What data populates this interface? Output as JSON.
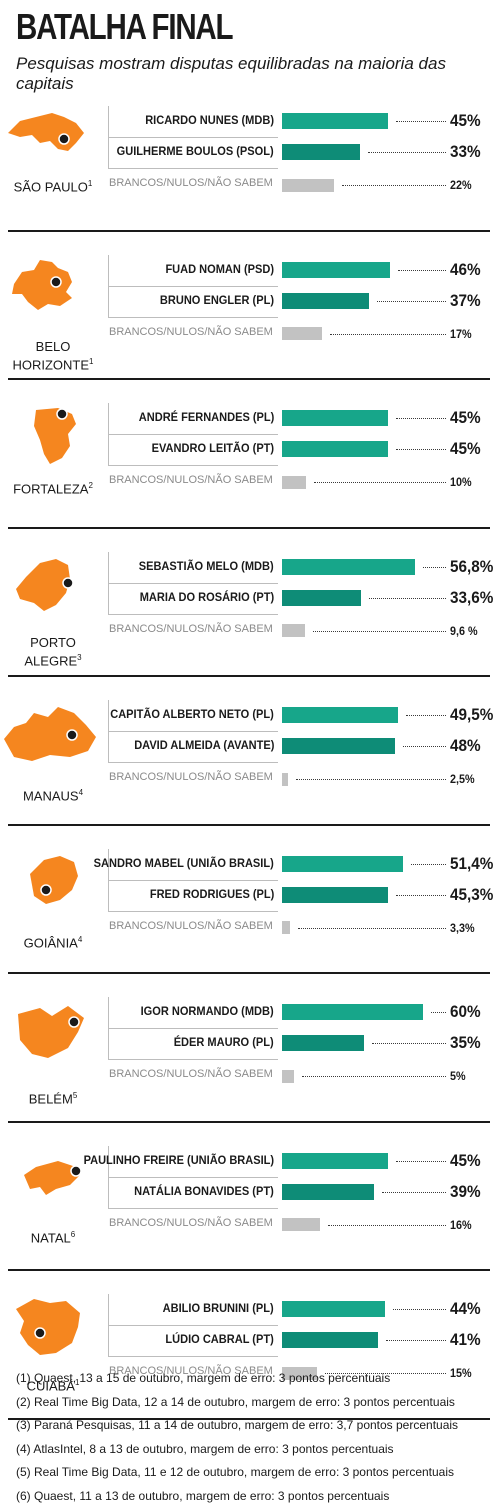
{
  "title": "BATALHA FINAL",
  "subtitle": "Pesquisas mostram disputas equilibradas na maioria das capitais",
  "colors": {
    "leader": "#17a68a",
    "runner": "#0e8c77",
    "blank": "#c2c2c2",
    "map": "#f5861f"
  },
  "chart_data": {
    "type": "bar",
    "orientation": "horizontal",
    "unit": "%",
    "cities": [
      {
        "name": "SÃO PAULO",
        "note": "1",
        "map_icon": "sao-paulo-state-map",
        "rows": [
          {
            "label": "RICARDO NUNES (MDB)",
            "value": 45,
            "display": "45%",
            "kind": "leader"
          },
          {
            "label": "GUILHERME BOULOS (PSOL)",
            "value": 33,
            "display": "33%",
            "kind": "runner"
          },
          {
            "label": "BRANCOS/NULOS/NÃO SABEM",
            "value": 22,
            "display": "22%",
            "kind": "blank"
          }
        ]
      },
      {
        "name": "BELO HORIZONTE",
        "note": "1",
        "map_icon": "minas-gerais-state-map",
        "rows": [
          {
            "label": "FUAD NOMAN (PSD)",
            "value": 46,
            "display": "46%",
            "kind": "leader"
          },
          {
            "label": "BRUNO ENGLER (PL)",
            "value": 37,
            "display": "37%",
            "kind": "runner"
          },
          {
            "label": "BRANCOS/NULOS/NÃO SABEM",
            "value": 17,
            "display": "17%",
            "kind": "blank"
          }
        ]
      },
      {
        "name": "FORTALEZA",
        "note": "2",
        "map_icon": "ceara-state-map",
        "rows": [
          {
            "label": "ANDRÉ FERNANDES (PL)",
            "value": 45,
            "display": "45%",
            "kind": "leader"
          },
          {
            "label": "EVANDRO LEITÃO (PT)",
            "value": 45,
            "display": "45%",
            "kind": "leader"
          },
          {
            "label": "BRANCOS/NULOS/NÃO SABEM",
            "value": 10,
            "display": "10%",
            "kind": "blank"
          }
        ]
      },
      {
        "name": "PORTO ALEGRE",
        "note": "3",
        "map_icon": "rio-grande-do-sul-state-map",
        "rows": [
          {
            "label": "SEBASTIÃO MELO (MDB)",
            "value": 56.8,
            "display": "56,8%",
            "kind": "leader"
          },
          {
            "label": "MARIA DO ROSÁRIO (PT)",
            "value": 33.6,
            "display": "33,6%",
            "kind": "runner"
          },
          {
            "label": "BRANCOS/NULOS/NÃO SABEM",
            "value": 9.6,
            "display": "9,6 %",
            "kind": "blank"
          }
        ]
      },
      {
        "name": "MANAUS",
        "note": "4",
        "map_icon": "amazonas-state-map",
        "rows": [
          {
            "label": "CAPITÃO ALBERTO NETO (PL)",
            "value": 49.5,
            "display": "49,5%",
            "kind": "leader"
          },
          {
            "label": "DAVID ALMEIDA (AVANTE)",
            "value": 48,
            "display": "48%",
            "kind": "runner"
          },
          {
            "label": "BRANCOS/NULOS/NÃO SABEM",
            "value": 2.5,
            "display": "2,5%",
            "kind": "blank"
          }
        ]
      },
      {
        "name": "GOIÂNIA",
        "note": "4",
        "map_icon": "goias-state-map",
        "rows": [
          {
            "label": "SANDRO MABEL (UNIÃO BRASIL)",
            "value": 51.4,
            "display": "51,4%",
            "kind": "leader"
          },
          {
            "label": "FRED RODRIGUES (PL)",
            "value": 45.3,
            "display": "45,3%",
            "kind": "runner"
          },
          {
            "label": "BRANCOS/NULOS/NÃO SABEM",
            "value": 3.3,
            "display": "3,3%",
            "kind": "blank"
          }
        ]
      },
      {
        "name": "BELÉM",
        "note": "5",
        "map_icon": "para-state-map",
        "rows": [
          {
            "label": "IGOR NORMANDO (MDB)",
            "value": 60,
            "display": "60%",
            "kind": "leader"
          },
          {
            "label": "ÉDER MAURO (PL)",
            "value": 35,
            "display": "35%",
            "kind": "runner"
          },
          {
            "label": "BRANCOS/NULOS/NÃO SABEM",
            "value": 5,
            "display": "5%",
            "kind": "blank"
          }
        ]
      },
      {
        "name": "NATAL",
        "note": "6",
        "map_icon": "rio-grande-do-norte-state-map",
        "rows": [
          {
            "label": "PAULINHO FREIRE (UNIÃO BRASIL)",
            "value": 45,
            "display": "45%",
            "kind": "leader"
          },
          {
            "label": "NATÁLIA BONAVIDES (PT)",
            "value": 39,
            "display": "39%",
            "kind": "runner"
          },
          {
            "label": "BRANCOS/NULOS/NÃO SABEM",
            "value": 16,
            "display": "16%",
            "kind": "blank"
          }
        ]
      },
      {
        "name": "CUIABÁ",
        "note": "1",
        "map_icon": "mato-grosso-state-map",
        "rows": [
          {
            "label": "ABILIO BRUNINI (PL)",
            "value": 44,
            "display": "44%",
            "kind": "leader"
          },
          {
            "label": "LÚDIO CABRAL (PT)",
            "value": 41,
            "display": "41%",
            "kind": "runner"
          },
          {
            "label": "BRANCOS/NULOS/NÃO SABEM",
            "value": 15,
            "display": "15%",
            "kind": "blank"
          }
        ]
      }
    ]
  },
  "footnotes": [
    "(1) Quaest, 13 a 15 de outubro, margem de erro: 3 pontos percentuais",
    "(2) Real Time Big Data, 12 a 14 de outubro, margem de erro: 3 pontos percentuais",
    "(3) Paraná Pesquisas, 11 a 14 de outubro, margem de erro: 3,7 pontos percentuais",
    "(4) AtlasIntel, 8 a 13 de outubro, margem de erro: 3 pontos percentuais",
    "(5) Real Time Big Data, 11 e 12 de outubro, margem de erro: 3 pontos percentuais",
    "(6) Quaest, 11 a 13 de outubro, margem de erro: 3 pontos percentuais"
  ]
}
